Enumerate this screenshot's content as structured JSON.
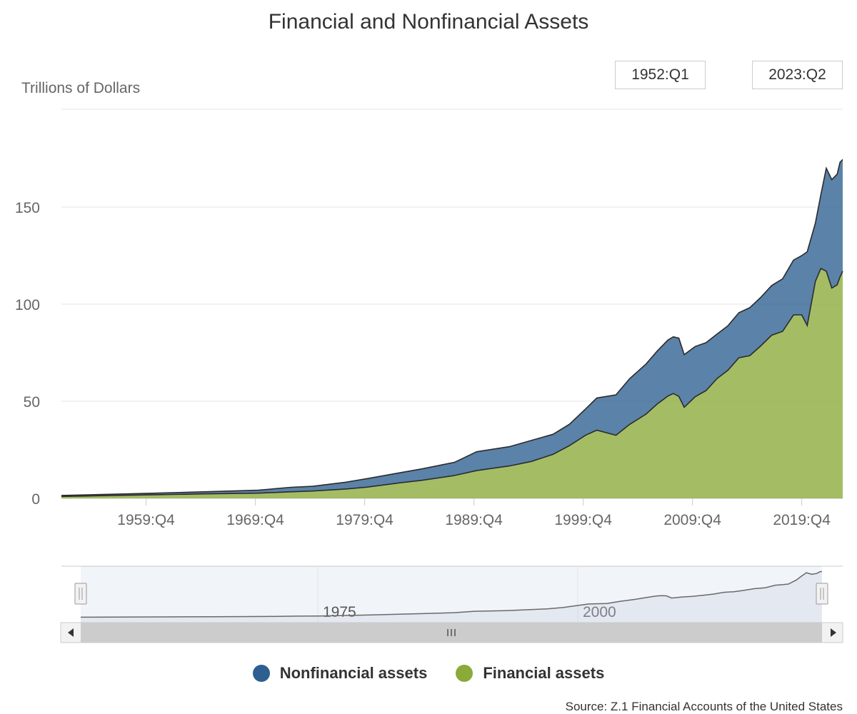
{
  "chart_data": {
    "type": "area",
    "title": "Financial and Nonfinancial Assets",
    "ylabel": "Trillions of Dollars",
    "range_selector": {
      "from": "1952:Q1",
      "to": "2023:Q2"
    },
    "x_ticks": [
      "1959:Q4",
      "1969:Q4",
      "1979:Q4",
      "1989:Q4",
      "1999:Q4",
      "2009:Q4",
      "2019:Q4"
    ],
    "y_ticks": [
      "0",
      "50",
      "100",
      "150"
    ],
    "ylim": [
      0,
      200
    ],
    "stacked": true,
    "grid": true,
    "legend_position": "bottom",
    "x": [
      1952.0,
      1955.0,
      1960.0,
      1965.0,
      1970.0,
      1973.0,
      1975.0,
      1978.0,
      1980.0,
      1983.0,
      1985.0,
      1988.0,
      1990.0,
      1993.0,
      1995.0,
      1997.0,
      1998.5,
      2000.0,
      2001.0,
      2002.75,
      2004.0,
      2005.5,
      2006.5,
      2007.5,
      2008.0,
      2008.5,
      2009.0,
      2010.0,
      2011.0,
      2012.0,
      2013.0,
      2014.0,
      2015.0,
      2016.0,
      2017.0,
      2018.0,
      2019.0,
      2019.75,
      2020.25,
      2021.0,
      2021.5,
      2022.0,
      2022.5,
      2023.0,
      2023.25,
      2023.5
    ],
    "series": [
      {
        "name": "Financial assets",
        "color": "#8aaa3a",
        "values": [
          1.0,
          1.3,
          1.8,
          2.3,
          2.7,
          3.4,
          3.8,
          4.8,
          5.8,
          8.0,
          9.3,
          11.8,
          14.3,
          16.7,
          19.0,
          22.7,
          27.2,
          32.6,
          35.1,
          32.5,
          38.1,
          43.4,
          48.5,
          52.7,
          54.0,
          52.5,
          46.9,
          52.3,
          55.5,
          61.7,
          66.0,
          72.4,
          73.5,
          78.5,
          84.0,
          86.0,
          94.5,
          94.5,
          89.0,
          111.7,
          118.4,
          117.0,
          108.3,
          110.0,
          114.0,
          117.0
        ]
      },
      {
        "name": "Nonfinancial assets",
        "color": "#2d5f91",
        "values": [
          0.5,
          0.6,
          0.8,
          1.1,
          1.5,
          2.3,
          2.4,
          3.5,
          4.4,
          5.2,
          5.9,
          6.8,
          9.7,
          9.9,
          10.8,
          10.3,
          11.0,
          13.6,
          16.6,
          20.8,
          23.5,
          25.8,
          27.2,
          28.8,
          29.2,
          30.0,
          27.1,
          25.9,
          24.7,
          22.9,
          22.9,
          23.2,
          24.7,
          25.0,
          25.6,
          27.0,
          28.2,
          30.5,
          38.0,
          30.0,
          38.0,
          53.0,
          55.8,
          57.0,
          59.0,
          57.5
        ]
      }
    ]
  },
  "navigator": {
    "labels": [
      "1975",
      "2000"
    ]
  },
  "legend": {
    "items": [
      {
        "label": "Nonfinancial assets",
        "color": "#2d5f91"
      },
      {
        "label": "Financial assets",
        "color": "#8aaa3a"
      }
    ]
  },
  "source": "Source: Z.1 Financial Accounts of the United States"
}
